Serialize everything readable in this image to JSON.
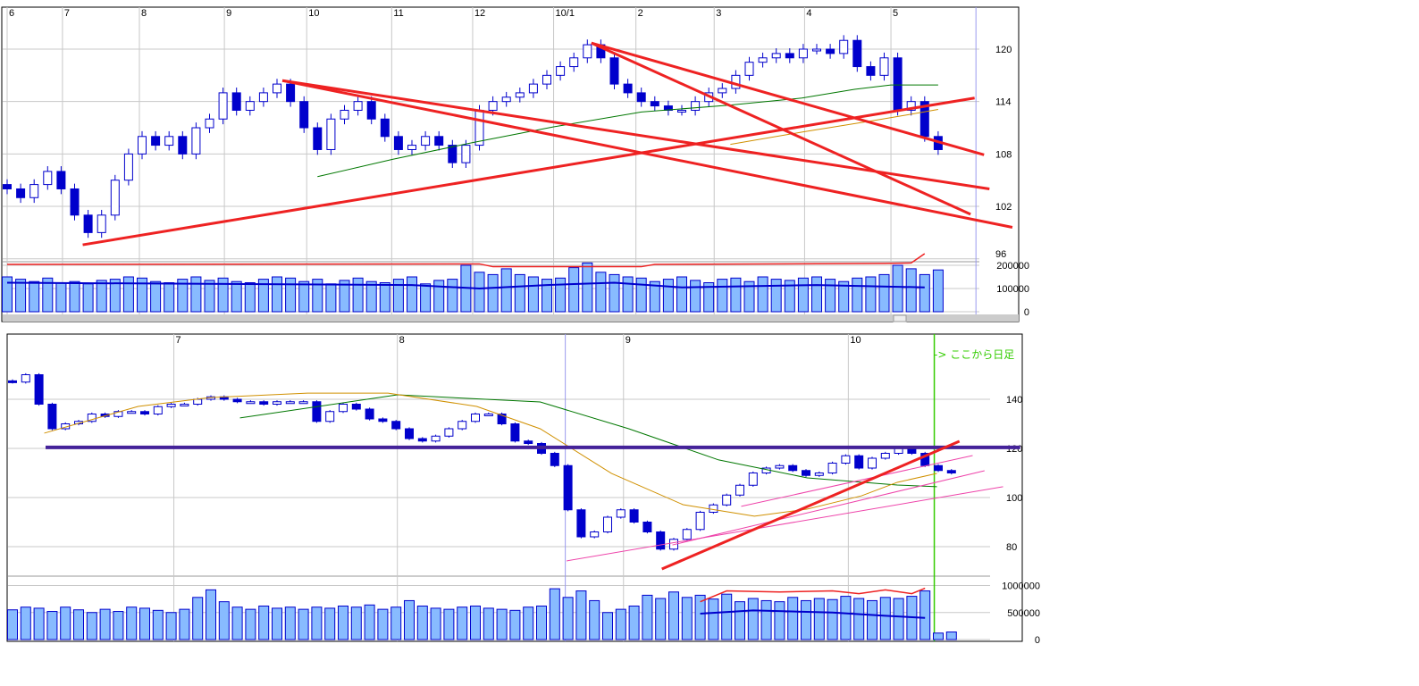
{
  "colors": {
    "candle": "#0000cc",
    "up_fill": "#ffffff",
    "volume_fill": "#88bbff",
    "trend": "#ee2222",
    "ma_long": "#007700",
    "ma_short": "#d09000",
    "support": "#442299",
    "channel": "#ee44aa",
    "divider": "#33cc00",
    "grid": "#c8c8c8"
  },
  "chart_data": [
    {
      "type": "candlestick",
      "x_tick_labels": [
        {
          "label": "6",
          "i": 0
        },
        {
          "label": "7",
          "i": 4.1
        },
        {
          "label": "8",
          "i": 9.8
        },
        {
          "label": "9",
          "i": 16.1
        },
        {
          "label": "10",
          "i": 22.2
        },
        {
          "label": "11",
          "i": 28.5
        },
        {
          "label": "12",
          "i": 34.5
        },
        {
          "label": "10/1",
          "i": 40.5
        },
        {
          "label": "2",
          "i": 46.6
        },
        {
          "label": "3",
          "i": 52.4
        },
        {
          "label": "4",
          "i": 59.1
        },
        {
          "label": "5",
          "i": 65.5
        }
      ],
      "y_ticks": [
        120,
        114,
        108,
        102,
        96
      ],
      "volume_ticks": [
        {
          "label": "200000",
          "v": 200000
        },
        {
          "label": "100000",
          "v": 100000
        },
        {
          "label": "0",
          "v": 0
        }
      ],
      "grid": true,
      "closes": [
        104,
        103,
        104.5,
        106,
        104,
        101,
        99,
        101,
        105,
        108,
        110,
        109,
        110,
        108,
        111,
        112,
        115,
        113,
        114,
        115,
        116,
        114,
        111,
        108.5,
        112,
        113,
        114,
        112,
        110,
        108.5,
        109,
        110,
        109,
        107,
        109,
        113,
        114,
        114.5,
        115,
        116,
        117,
        118,
        119,
        120.5,
        119,
        116,
        115,
        114,
        113.5,
        113,
        113,
        114,
        115,
        115.5,
        117,
        118.5,
        119,
        119.5,
        119,
        120,
        120,
        119.5,
        121,
        118,
        117,
        119,
        113,
        114,
        110,
        108.5
      ],
      "volumes": [
        150000,
        140000,
        130000,
        145000,
        125000,
        130000,
        120000,
        135000,
        140000,
        150000,
        145000,
        130000,
        125000,
        140000,
        150000,
        135000,
        145000,
        130000,
        125000,
        140000,
        150000,
        145000,
        130000,
        140000,
        120000,
        135000,
        145000,
        130000,
        125000,
        140000,
        150000,
        120000,
        135000,
        140000,
        200000,
        170000,
        160000,
        185000,
        160000,
        150000,
        140000,
        145000,
        190000,
        210000,
        170000,
        160000,
        150000,
        145000,
        130000,
        140000,
        150000,
        135000,
        125000,
        140000,
        145000,
        130000,
        150000,
        140000,
        135000,
        145000,
        150000,
        140000,
        130000,
        145000,
        150000,
        160000,
        200000,
        185000,
        160000,
        180000
      ],
      "ma_long": [
        [
          23,
          105.4
        ],
        [
          28.6,
          107.4
        ],
        [
          34.5,
          109.3
        ],
        [
          40.5,
          111.1
        ],
        [
          47,
          112.8
        ],
        [
          53.6,
          113.6
        ],
        [
          58.9,
          114.4
        ],
        [
          62.8,
          115.4
        ],
        [
          65.5,
          115.9
        ],
        [
          69,
          115.9
        ]
      ],
      "ma_short": [
        [
          53.6,
          109.1
        ],
        [
          58.9,
          110.5
        ],
        [
          64.1,
          111.8
        ],
        [
          66.8,
          112.5
        ],
        [
          69,
          113.1
        ]
      ],
      "volume_line_red": [
        [
          0,
          204000
        ],
        [
          35,
          206000
        ],
        [
          36,
          194000
        ],
        [
          47,
          194000
        ],
        [
          48,
          204000
        ],
        [
          65,
          208000
        ],
        [
          67,
          210000
        ],
        [
          68,
          250000
        ]
      ],
      "volume_line_blue": [
        [
          0,
          125000
        ],
        [
          30,
          115000
        ],
        [
          35,
          100000
        ],
        [
          40,
          115000
        ],
        [
          45,
          125000
        ],
        [
          50,
          105000
        ],
        [
          60,
          115000
        ],
        [
          68,
          105000
        ]
      ],
      "trendlines": [
        [
          5.6,
          97.6,
          71.7,
          114.4
        ],
        [
          20.4,
          116.4,
          72.8,
          104.0
        ],
        [
          20.4,
          116.4,
          74.5,
          99.6
        ],
        [
          43.3,
          120.7,
          72.4,
          107.9
        ],
        [
          43.3,
          120.7,
          71.4,
          101.1
        ]
      ],
      "marker_line_i": 71.8,
      "ylim": [
        96,
        122
      ]
    },
    {
      "type": "candlestick",
      "x_tick_labels": [
        {
          "label": "7",
          "i": 12.2
        },
        {
          "label": "8",
          "i": 29.1
        },
        {
          "label": "9",
          "i": 46.2
        },
        {
          "label": "10",
          "i": 63.2
        }
      ],
      "y_ticks": [
        140,
        120,
        100,
        80
      ],
      "volume_ticks": [
        {
          "label": "1000000",
          "v": 1000000
        },
        {
          "label": "500000",
          "v": 500000
        },
        {
          "label": "0",
          "v": 0
        }
      ],
      "grid": true,
      "closes": [
        147,
        150,
        138,
        128,
        130,
        131,
        134,
        133,
        135,
        135,
        134,
        137,
        138,
        138,
        140,
        141,
        140,
        139,
        139,
        138,
        139,
        139,
        139,
        131,
        135,
        138,
        136,
        132,
        131,
        128,
        124,
        123,
        125,
        128,
        131,
        134,
        134,
        130,
        123,
        122,
        118,
        113,
        95,
        84,
        86,
        92,
        95,
        90,
        86,
        79,
        83,
        87,
        94,
        97,
        101,
        105,
        110,
        112,
        113,
        111,
        109,
        110,
        114,
        117,
        112,
        116,
        118,
        120,
        118,
        113,
        111,
        110
      ],
      "volumes": [
        550000,
        600000,
        580000,
        520000,
        600000,
        550000,
        500000,
        560000,
        520000,
        600000,
        580000,
        540000,
        500000,
        560000,
        780000,
        920000,
        700000,
        600000,
        560000,
        620000,
        580000,
        600000,
        560000,
        600000,
        580000,
        620000,
        600000,
        640000,
        560000,
        600000,
        720000,
        620000,
        580000,
        560000,
        600000,
        620000,
        580000,
        560000,
        540000,
        600000,
        620000,
        940000,
        780000,
        900000,
        720000,
        500000,
        560000,
        620000,
        820000,
        760000,
        880000,
        780000,
        820000,
        750000,
        840000,
        700000,
        760000,
        720000,
        700000,
        780000,
        720000,
        760000,
        740000,
        800000,
        760000,
        720000,
        780000,
        760000,
        800000,
        900000,
        120000,
        140000
      ],
      "ma_long": [
        [
          17.2,
          132.4
        ],
        [
          29.1,
          141.8
        ],
        [
          39.9,
          138.9
        ],
        [
          46.6,
          128
        ],
        [
          53.4,
          115.3
        ],
        [
          60.1,
          108
        ],
        [
          66.9,
          105.1
        ],
        [
          69.9,
          104.4
        ]
      ],
      "ma_short": [
        [
          2.4,
          126.2
        ],
        [
          9.5,
          137.1
        ],
        [
          14.9,
          140.7
        ],
        [
          22.3,
          142.5
        ],
        [
          28.4,
          142.5
        ],
        [
          35.1,
          137.1
        ],
        [
          39.9,
          128
        ],
        [
          45.3,
          109.8
        ],
        [
          50.7,
          97.1
        ],
        [
          56.1,
          92.4
        ],
        [
          60.1,
          95.3
        ],
        [
          64.2,
          100.7
        ],
        [
          66.9,
          106.2
        ],
        [
          69.9,
          109.8
        ]
      ],
      "volume_line_red": [
        [
          52,
          700000
        ],
        [
          54,
          900000
        ],
        [
          58,
          880000
        ],
        [
          62,
          900000
        ],
        [
          64,
          850000
        ],
        [
          66,
          920000
        ],
        [
          68,
          850000
        ],
        [
          69,
          950000
        ]
      ],
      "volume_line_blue": [
        [
          52,
          480000
        ],
        [
          56,
          540000
        ],
        [
          62,
          500000
        ],
        [
          66,
          440000
        ],
        [
          69,
          400000
        ]
      ],
      "support_line": [
        2.5,
        120.4,
        76.2,
        120.4
      ],
      "trendlines": [
        [
          49.1,
          70.9,
          71.6,
          122.9
        ]
      ],
      "channel_lines": [
        [
          41.9,
          74.2,
          74.9,
          104.4
        ],
        [
          49.9,
          80.7,
          73.5,
          110.9
        ],
        [
          55.1,
          96.4,
          72.6,
          117.1
        ]
      ],
      "marker_line_i": 41.8,
      "divider_i": 69.7,
      "divider_note": "-> ここから日足",
      "ylim": [
        70,
        155
      ]
    }
  ]
}
